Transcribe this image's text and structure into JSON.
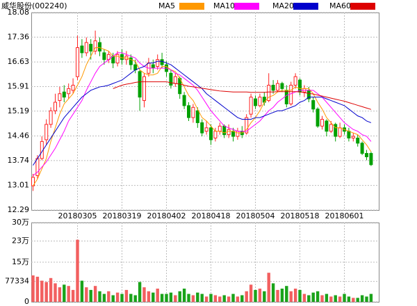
{
  "chart_data": [
    {
      "type": "candlestick",
      "title": "威华股份(002240)",
      "categories": [
        null,
        null,
        null,
        null,
        null,
        null,
        null,
        null,
        null,
        null,
        "20180305",
        null,
        null,
        null,
        null,
        null,
        null,
        null,
        null,
        null,
        "20180319",
        null,
        null,
        null,
        null,
        null,
        null,
        null,
        null,
        null,
        "20180402",
        null,
        null,
        null,
        null,
        null,
        null,
        null,
        null,
        null,
        "20180418",
        null,
        null,
        null,
        null,
        null,
        null,
        null,
        null,
        null,
        "20180504",
        null,
        null,
        null,
        null,
        null,
        null,
        null,
        null,
        null,
        "20180518",
        null,
        null,
        null,
        null,
        null,
        null,
        null,
        null,
        null,
        "20180601",
        null,
        null,
        null,
        null,
        null,
        null
      ],
      "open": [
        13.0,
        13.3,
        13.8,
        14.35,
        14.8,
        15.2,
        15.5,
        15.75,
        15.7,
        15.8,
        16.2,
        17.1,
        16.9,
        17.15,
        16.95,
        17.2,
        16.9,
        16.7,
        16.8,
        16.6,
        16.85,
        16.7,
        16.75,
        16.55,
        16.35,
        15.5,
        16.3,
        16.55,
        16.5,
        16.7,
        16.55,
        16.3,
        16.0,
        16.15,
        15.65,
        15.35,
        15.0,
        15.2,
        14.85,
        14.6,
        14.7,
        14.4,
        14.6,
        14.75,
        14.5,
        14.6,
        14.45,
        14.6,
        14.55,
        15.1,
        15.55,
        15.35,
        15.6,
        15.5,
        15.95,
        15.8,
        16.0,
        15.8,
        15.4,
        15.95,
        16.1,
        15.75,
        15.8,
        15.5,
        15.25,
        14.75,
        14.9,
        14.6,
        14.8,
        14.45,
        14.7,
        14.6,
        14.4,
        14.4,
        14.25,
        13.95,
        13.95
      ],
      "high": [
        13.35,
        13.9,
        14.45,
        14.95,
        15.3,
        15.7,
        15.9,
        15.95,
        16.0,
        16.15,
        17.4,
        17.3,
        17.35,
        17.3,
        17.55,
        17.35,
        17.0,
        16.95,
        16.9,
        16.95,
        17.0,
        16.95,
        16.85,
        16.7,
        16.4,
        16.3,
        16.75,
        16.7,
        16.85,
        16.9,
        16.65,
        16.4,
        16.3,
        16.2,
        15.75,
        15.45,
        15.4,
        15.3,
        14.95,
        14.9,
        14.8,
        14.7,
        14.85,
        14.8,
        14.8,
        14.7,
        14.7,
        14.75,
        15.1,
        15.7,
        15.65,
        15.7,
        15.75,
        16.3,
        16.1,
        16.1,
        16.05,
        15.95,
        16.05,
        16.3,
        16.15,
        15.95,
        15.9,
        15.6,
        15.3,
        15.05,
        14.95,
        14.9,
        14.85,
        14.85,
        14.8,
        14.7,
        14.55,
        14.5,
        14.3,
        14.05,
        14.0
      ],
      "low": [
        12.85,
        13.2,
        13.75,
        14.2,
        14.7,
        15.1,
        15.3,
        15.45,
        15.55,
        15.7,
        16.1,
        16.75,
        16.8,
        16.7,
        16.85,
        16.8,
        16.55,
        16.6,
        16.45,
        16.5,
        16.55,
        16.55,
        16.4,
        16.3,
        15.2,
        15.3,
        16.2,
        16.3,
        16.4,
        16.45,
        16.2,
        15.85,
        15.9,
        15.55,
        15.25,
        14.9,
        14.85,
        14.7,
        14.45,
        14.5,
        14.2,
        14.3,
        14.5,
        14.4,
        14.4,
        14.3,
        14.35,
        14.4,
        14.5,
        15.0,
        15.25,
        15.3,
        15.35,
        15.45,
        15.7,
        15.75,
        15.75,
        15.3,
        15.35,
        15.85,
        15.65,
        15.6,
        15.45,
        15.15,
        14.7,
        14.65,
        14.45,
        14.55,
        14.3,
        14.4,
        14.5,
        14.3,
        14.3,
        14.15,
        13.9,
        13.75,
        13.58
      ],
      "close": [
        13.25,
        13.8,
        14.3,
        14.8,
        15.2,
        15.45,
        15.7,
        15.6,
        15.85,
        15.95,
        17.05,
        16.9,
        17.2,
        16.95,
        17.25,
        16.95,
        16.7,
        16.85,
        16.6,
        16.85,
        16.7,
        16.8,
        16.55,
        16.4,
        15.6,
        16.2,
        16.6,
        16.45,
        16.7,
        16.55,
        16.35,
        15.95,
        16.2,
        15.7,
        15.35,
        15.0,
        15.3,
        14.85,
        14.55,
        14.7,
        14.35,
        14.6,
        14.75,
        14.5,
        14.65,
        14.45,
        14.6,
        14.5,
        15.0,
        15.6,
        15.35,
        15.6,
        15.45,
        15.95,
        15.8,
        16.0,
        15.85,
        15.4,
        15.95,
        16.2,
        15.75,
        15.85,
        15.55,
        15.25,
        14.75,
        14.95,
        14.6,
        14.8,
        14.45,
        14.7,
        14.6,
        14.4,
        14.45,
        14.25,
        13.95,
        13.85,
        13.62
      ],
      "up_color": "#ff2020",
      "down_color": "#00a000",
      "series": [
        {
          "name": "MA5",
          "color": "#ff9900",
          "values": [
            13.0,
            13.2,
            13.5,
            13.8,
            14.3,
            14.7,
            15.1,
            15.4,
            15.55,
            15.7,
            15.95,
            16.2,
            16.55,
            16.8,
            17.05,
            17.05,
            17.0,
            16.95,
            16.8,
            16.8,
            16.75,
            16.75,
            16.7,
            16.65,
            16.4,
            16.3,
            16.25,
            16.25,
            16.3,
            16.5,
            16.5,
            16.4,
            16.35,
            16.15,
            15.9,
            15.65,
            15.5,
            15.25,
            15.0,
            14.9,
            14.75,
            14.6,
            14.6,
            14.55,
            14.6,
            14.6,
            14.55,
            14.55,
            14.65,
            14.85,
            15.0,
            15.2,
            15.45,
            15.6,
            15.65,
            15.75,
            15.8,
            15.8,
            15.8,
            15.9,
            15.85,
            15.85,
            15.85,
            15.7,
            15.45,
            15.25,
            15.0,
            14.85,
            14.7,
            14.7,
            14.65,
            14.6,
            14.55,
            14.5,
            14.35,
            14.2,
            14.0
          ]
        },
        {
          "name": "MA10",
          "color": "#ff00ff",
          "values": [
            13.3,
            13.4,
            13.55,
            13.7,
            13.9,
            14.1,
            14.35,
            14.6,
            14.9,
            15.1,
            15.3,
            15.5,
            15.8,
            16.05,
            16.3,
            16.5,
            16.6,
            16.7,
            16.8,
            16.9,
            16.9,
            16.85,
            16.8,
            16.75,
            16.6,
            16.5,
            16.45,
            16.45,
            16.45,
            16.45,
            16.45,
            16.4,
            16.3,
            16.25,
            16.15,
            16.05,
            15.95,
            15.8,
            15.6,
            15.4,
            15.2,
            15.05,
            14.9,
            14.75,
            14.7,
            14.65,
            14.6,
            14.6,
            14.6,
            14.7,
            14.8,
            14.9,
            15.05,
            15.2,
            15.3,
            15.45,
            15.55,
            15.65,
            15.7,
            15.75,
            15.8,
            15.8,
            15.8,
            15.8,
            15.7,
            15.6,
            15.45,
            15.3,
            15.15,
            15.0,
            14.85,
            14.75,
            14.65,
            14.6,
            14.5,
            14.45,
            14.3
          ]
        },
        {
          "name": "MA20",
          "color": "#0000cc",
          "values": [
            13.6,
            13.8,
            14.0,
            14.2,
            14.4,
            14.6,
            14.8,
            15.0,
            15.15,
            15.3,
            15.45,
            15.6,
            15.7,
            15.8,
            15.85,
            15.9,
            15.92,
            15.95,
            16.0,
            16.05,
            16.1,
            16.2,
            16.3,
            16.4,
            16.45,
            16.5,
            16.6,
            16.6,
            16.65,
            16.65,
            16.6,
            16.55,
            16.45,
            16.35,
            16.25,
            16.15,
            16.05,
            15.95,
            15.85,
            15.7,
            15.6,
            15.5,
            15.4,
            15.3,
            15.2,
            15.1,
            15.0,
            14.95,
            14.95,
            14.95,
            15.0,
            15.0,
            15.05,
            15.1,
            15.15,
            15.2,
            15.2,
            15.25,
            15.3,
            15.35,
            15.45,
            15.5,
            15.6,
            15.6,
            15.6,
            15.6,
            15.55,
            15.5,
            15.45,
            15.4,
            15.35,
            15.25,
            15.15,
            15.05,
            15.0,
            14.9,
            14.85
          ]
        },
        {
          "name": "MA60",
          "color": "#dd0000",
          "values": [
            null,
            null,
            null,
            null,
            null,
            null,
            null,
            null,
            null,
            null,
            null,
            null,
            null,
            null,
            null,
            null,
            null,
            null,
            15.85,
            15.9,
            15.95,
            15.98,
            16.0,
            16.03,
            16.05,
            16.05,
            16.05,
            16.05,
            16.05,
            16.05,
            16.05,
            16.02,
            16.0,
            15.98,
            15.95,
            15.92,
            15.9,
            15.88,
            15.86,
            15.84,
            15.82,
            15.8,
            15.78,
            15.77,
            15.76,
            15.75,
            15.75,
            15.75,
            15.75,
            15.74,
            15.74,
            15.74,
            15.74,
            15.75,
            15.75,
            15.76,
            15.76,
            15.76,
            15.76,
            15.76,
            15.75,
            15.73,
            15.71,
            15.69,
            15.66,
            15.63,
            15.6,
            15.57,
            15.54,
            15.51,
            15.48,
            15.44,
            15.4,
            15.36,
            15.32,
            15.28,
            15.24
          ]
        }
      ],
      "ylim": [
        12.29,
        18.08
      ],
      "yticks": [
        12.29,
        13.01,
        13.74,
        14.46,
        15.19,
        15.91,
        16.63,
        17.36,
        18.08
      ],
      "grid": true
    },
    {
      "type": "bar",
      "values": [
        100000,
        95000,
        80000,
        75000,
        90000,
        70000,
        55000,
        65000,
        60000,
        45000,
        235000,
        80000,
        55000,
        45000,
        60000,
        40000,
        30000,
        40000,
        25000,
        35000,
        30000,
        45000,
        30000,
        25000,
        75000,
        55000,
        40000,
        35000,
        50000,
        30000,
        30000,
        35000,
        25000,
        40000,
        50000,
        30000,
        25000,
        35000,
        30000,
        20000,
        30000,
        25000,
        20000,
        25000,
        20000,
        30000,
        20000,
        25000,
        40000,
        65000,
        45000,
        50000,
        40000,
        110000,
        70000,
        45000,
        50000,
        60000,
        40000,
        50000,
        45000,
        30000,
        25000,
        35000,
        40000,
        25000,
        30000,
        20000,
        25000,
        20000,
        30000,
        20000,
        15000,
        15000,
        25000,
        20000,
        30000
      ],
      "up_color": "#f25f5f",
      "down_color": "#1aa31a",
      "ylim": [
        0,
        300000
      ],
      "yticks": [
        0,
        77334,
        {
          "value": 150000,
          "label": "15万"
        },
        {
          "value": 230000,
          "label": "23万"
        },
        {
          "value": 300000,
          "label": "30万"
        }
      ],
      "grid": true
    }
  ]
}
